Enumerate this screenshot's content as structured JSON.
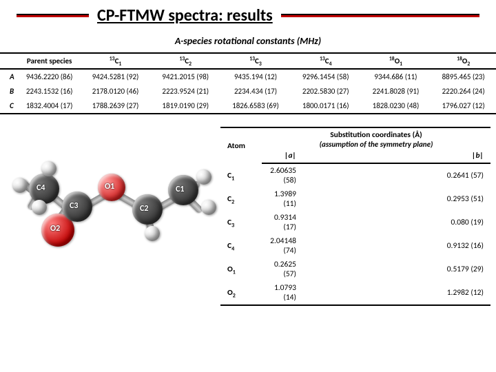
{
  "title": "CP-FTMW spectra: results",
  "subtitle1": "A-species rotational constants (MHz)",
  "t1": {
    "headers": [
      "",
      "Parent species",
      "13C1",
      "13C2",
      "13C3",
      "13C4",
      "18O1",
      "18O2"
    ],
    "rows": [
      [
        "A",
        "9436.2220 (86)",
        "9424.5281 (92)",
        "9421.2015 (98)",
        "9435.194 (12)",
        "9296.1454 (58)",
        "9344.686 (11)",
        "8895.465 (23)"
      ],
      [
        "B",
        "2243.1532 (16)",
        "2178.0120 (46)",
        "2223.9524 (21)",
        "2234.434 (17)",
        "2202.5830 (27)",
        "2241.8028 (91)",
        "2220.264 (24)"
      ],
      [
        "C",
        "1832.4004 (17)",
        "1788.2639 (27)",
        "1819.0190 (29)",
        "1826.6583 (69)",
        "1800.0171 (16)",
        "1828.0230 (48)",
        "1796.027 (12)"
      ]
    ]
  },
  "sub2": "Substitution coordinates (Å)",
  "sub2b": "(assumption of the symmetry plane)",
  "t2": {
    "cols": [
      "Atom",
      "|a|",
      "|b|"
    ],
    "rows": [
      [
        "C1",
        "2.60635 (58)",
        "0.2641 (57)"
      ],
      [
        "C2",
        "1.3989 (11)",
        "0.2953 (51)"
      ],
      [
        "C3",
        "0.9314 (17)",
        "0.080 (19)"
      ],
      [
        "C4",
        "2.04148 (74)",
        "0.9132 (16)"
      ],
      [
        "O1",
        "0.2625 (57)",
        "0.5179 (29)"
      ],
      [
        "O2",
        "1.0793 (14)",
        "1.2982 (12)"
      ]
    ]
  },
  "atoms": {
    "c1": "C1",
    "c2": "C2",
    "c3": "C3",
    "c4": "C4",
    "o1": "O1",
    "o2": "O2"
  }
}
